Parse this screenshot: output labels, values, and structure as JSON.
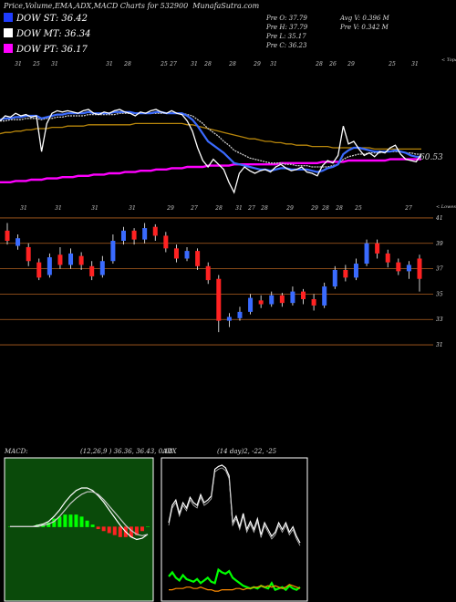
{
  "header": {
    "title": "Price,Volume,EMA,ADX,MACD Charts for 532900",
    "site": "MunafaSutra.com",
    "dow": [
      {
        "label": "DOW ST:",
        "value": "36.42",
        "color": "#1e3cff"
      },
      {
        "label": "DOW MT:",
        "value": "36.34",
        "color": "#ffffff"
      },
      {
        "label": "DOW PT:",
        "value": "36.17",
        "color": "#ff00ff"
      }
    ],
    "prev_left": [
      "Pre  O: 37.79",
      "Pre  H: 37.79",
      "Pre  L: 35.17",
      "Pre  C: 36.23"
    ],
    "prev_right": [
      "Avg V: 0.396  M",
      "Pre  V: 0.342  M"
    ]
  },
  "chart_data": [
    {
      "type": "line",
      "name": "EMA panel",
      "date_labels_top": [
        "31",
        "25",
        "31",
        "31",
        "28",
        "25",
        "27",
        "31",
        "28",
        "28",
        "29",
        "31",
        "28",
        "26",
        "29",
        "25",
        "31"
      ],
      "date_labels_bottom": [
        "31",
        "31",
        "31",
        "31",
        "29",
        "27",
        "28",
        "31",
        "27",
        "28",
        "29",
        "29",
        "28",
        "28",
        "25",
        "27"
      ],
      "tag_right": "< Topa",
      "price_label": "60.53",
      "series": [
        {
          "name": "price",
          "color": "#ffffff",
          "y": [
            0.66,
            0.7,
            0.69,
            0.72,
            0.7,
            0.71,
            0.69,
            0.7,
            0.42,
            0.64,
            0.72,
            0.74,
            0.73,
            0.74,
            0.73,
            0.72,
            0.74,
            0.75,
            0.72,
            0.71,
            0.73,
            0.72,
            0.74,
            0.75,
            0.73,
            0.72,
            0.7,
            0.73,
            0.72,
            0.74,
            0.75,
            0.73,
            0.72,
            0.74,
            0.72,
            0.71,
            0.66,
            0.58,
            0.45,
            0.35,
            0.3,
            0.36,
            0.32,
            0.28,
            0.18,
            0.1,
            0.25,
            0.3,
            0.27,
            0.25,
            0.27,
            0.28,
            0.26,
            0.3,
            0.32,
            0.29,
            0.27,
            0.28,
            0.3,
            0.26,
            0.25,
            0.23,
            0.31,
            0.35,
            0.33,
            0.39,
            0.62,
            0.48,
            0.5,
            0.44,
            0.39,
            0.41,
            0.38,
            0.42,
            0.41,
            0.45,
            0.47,
            0.4,
            0.36,
            0.35,
            0.34,
            0.4
          ]
        },
        {
          "name": "ema-short",
          "color": "#3b6bff",
          "y": [
            0.67,
            0.68,
            0.68,
            0.69,
            0.69,
            0.7,
            0.7,
            0.7,
            0.68,
            0.69,
            0.7,
            0.71,
            0.71,
            0.72,
            0.72,
            0.72,
            0.72,
            0.73,
            0.72,
            0.72,
            0.72,
            0.72,
            0.73,
            0.73,
            0.73,
            0.73,
            0.72,
            0.72,
            0.72,
            0.72,
            0.73,
            0.73,
            0.72,
            0.72,
            0.72,
            0.72,
            0.7,
            0.67,
            0.62,
            0.56,
            0.5,
            0.47,
            0.44,
            0.41,
            0.37,
            0.33,
            0.32,
            0.31,
            0.3,
            0.29,
            0.28,
            0.28,
            0.27,
            0.28,
            0.29,
            0.29,
            0.28,
            0.28,
            0.28,
            0.28,
            0.27,
            0.26,
            0.27,
            0.29,
            0.3,
            0.32,
            0.4,
            0.43,
            0.45,
            0.45,
            0.44,
            0.43,
            0.42,
            0.42,
            0.42,
            0.42,
            0.43,
            0.42,
            0.41,
            0.39,
            0.38,
            0.38
          ]
        },
        {
          "name": "ema-mid",
          "color": "#cccccc",
          "y": [
            0.66,
            0.66,
            0.67,
            0.67,
            0.67,
            0.68,
            0.68,
            0.68,
            0.67,
            0.68,
            0.68,
            0.69,
            0.69,
            0.7,
            0.7,
            0.7,
            0.7,
            0.71,
            0.71,
            0.71,
            0.71,
            0.71,
            0.71,
            0.72,
            0.72,
            0.72,
            0.72,
            0.72,
            0.72,
            0.72,
            0.72,
            0.72,
            0.72,
            0.72,
            0.72,
            0.72,
            0.71,
            0.7,
            0.67,
            0.64,
            0.6,
            0.57,
            0.54,
            0.5,
            0.47,
            0.43,
            0.41,
            0.39,
            0.37,
            0.36,
            0.35,
            0.34,
            0.33,
            0.33,
            0.33,
            0.32,
            0.32,
            0.31,
            0.31,
            0.31,
            0.3,
            0.3,
            0.3,
            0.3,
            0.31,
            0.32,
            0.36,
            0.38,
            0.39,
            0.4,
            0.4,
            0.41,
            0.41,
            0.41,
            0.42,
            0.42,
            0.42,
            0.42,
            0.41,
            0.41,
            0.4,
            0.4
          ]
        },
        {
          "name": "ema-long",
          "color": "#ff00ff",
          "y": [
            0.18,
            0.18,
            0.18,
            0.19,
            0.19,
            0.19,
            0.2,
            0.2,
            0.2,
            0.21,
            0.21,
            0.21,
            0.22,
            0.22,
            0.22,
            0.23,
            0.23,
            0.23,
            0.24,
            0.24,
            0.24,
            0.25,
            0.25,
            0.25,
            0.26,
            0.26,
            0.26,
            0.27,
            0.27,
            0.27,
            0.28,
            0.28,
            0.28,
            0.29,
            0.29,
            0.29,
            0.3,
            0.3,
            0.3,
            0.3,
            0.31,
            0.31,
            0.31,
            0.31,
            0.31,
            0.32,
            0.32,
            0.32,
            0.32,
            0.32,
            0.32,
            0.32,
            0.32,
            0.32,
            0.33,
            0.33,
            0.33,
            0.33,
            0.33,
            0.33,
            0.33,
            0.33,
            0.34,
            0.34,
            0.34,
            0.34,
            0.34,
            0.35,
            0.35,
            0.35,
            0.35,
            0.35,
            0.35,
            0.35,
            0.35,
            0.36,
            0.36,
            0.36,
            0.36,
            0.36,
            0.36,
            0.36
          ]
        },
        {
          "name": "ema-trend",
          "color": "#b8860b",
          "y": [
            0.56,
            0.57,
            0.57,
            0.58,
            0.58,
            0.59,
            0.59,
            0.6,
            0.6,
            0.6,
            0.61,
            0.61,
            0.61,
            0.62,
            0.62,
            0.62,
            0.62,
            0.63,
            0.63,
            0.63,
            0.63,
            0.63,
            0.63,
            0.63,
            0.63,
            0.63,
            0.64,
            0.64,
            0.64,
            0.64,
            0.64,
            0.64,
            0.64,
            0.64,
            0.64,
            0.64,
            0.63,
            0.63,
            0.62,
            0.61,
            0.6,
            0.59,
            0.58,
            0.57,
            0.56,
            0.55,
            0.54,
            0.53,
            0.52,
            0.52,
            0.51,
            0.5,
            0.5,
            0.49,
            0.49,
            0.48,
            0.48,
            0.47,
            0.47,
            0.47,
            0.46,
            0.46,
            0.46,
            0.46,
            0.45,
            0.45,
            0.45,
            0.45,
            0.45,
            0.45,
            0.45,
            0.45,
            0.44,
            0.44,
            0.44,
            0.44,
            0.44,
            0.44,
            0.44,
            0.44,
            0.44,
            0.44
          ]
        }
      ]
    },
    {
      "type": "candlestick",
      "name": "price panel",
      "tag_right": "< Lowes",
      "ytick_labels": [
        "41",
        "39",
        "37",
        "35",
        "33",
        "31"
      ],
      "yticks": [
        41,
        39,
        37,
        35,
        33,
        31
      ],
      "ylim": [
        30.5,
        41.5
      ],
      "candles": [
        {
          "o": 40.0,
          "c": 39.2,
          "h": 40.6,
          "l": 38.9
        },
        {
          "o": 38.8,
          "c": 39.4,
          "h": 39.7,
          "l": 38.5
        },
        {
          "o": 38.7,
          "c": 37.6,
          "h": 39.0,
          "l": 37.2
        },
        {
          "o": 37.5,
          "c": 36.3,
          "h": 37.8,
          "l": 36.1
        },
        {
          "o": 36.5,
          "c": 37.9,
          "h": 38.2,
          "l": 36.3
        },
        {
          "o": 38.1,
          "c": 37.3,
          "h": 38.7,
          "l": 37.0
        },
        {
          "o": 37.3,
          "c": 38.2,
          "h": 38.6,
          "l": 37.0
        },
        {
          "o": 38.0,
          "c": 37.3,
          "h": 38.3,
          "l": 36.9
        },
        {
          "o": 37.2,
          "c": 36.4,
          "h": 37.6,
          "l": 36.1
        },
        {
          "o": 36.5,
          "c": 37.6,
          "h": 38.0,
          "l": 36.3
        },
        {
          "o": 37.6,
          "c": 39.2,
          "h": 39.7,
          "l": 37.4
        },
        {
          "o": 39.2,
          "c": 40.0,
          "h": 40.3,
          "l": 38.9
        },
        {
          "o": 40.0,
          "c": 39.3,
          "h": 40.2,
          "l": 38.9
        },
        {
          "o": 39.3,
          "c": 40.2,
          "h": 40.6,
          "l": 39.0
        },
        {
          "o": 40.3,
          "c": 39.6,
          "h": 40.5,
          "l": 39.2
        },
        {
          "o": 39.6,
          "c": 38.6,
          "h": 39.9,
          "l": 38.3
        },
        {
          "o": 38.6,
          "c": 37.8,
          "h": 38.9,
          "l": 37.5
        },
        {
          "o": 37.8,
          "c": 38.4,
          "h": 38.7,
          "l": 37.6
        },
        {
          "o": 38.4,
          "c": 37.2,
          "h": 38.6,
          "l": 36.9
        },
        {
          "o": 37.2,
          "c": 36.1,
          "h": 37.5,
          "l": 35.8
        },
        {
          "o": 36.2,
          "c": 32.9,
          "h": 36.5,
          "l": 32.0
        },
        {
          "o": 32.9,
          "c": 33.2,
          "h": 33.5,
          "l": 32.4
        },
        {
          "o": 33.1,
          "c": 33.6,
          "h": 34.0,
          "l": 32.9
        },
        {
          "o": 33.6,
          "c": 34.7,
          "h": 35.0,
          "l": 33.4
        },
        {
          "o": 34.5,
          "c": 34.2,
          "h": 34.9,
          "l": 33.9
        },
        {
          "o": 34.2,
          "c": 34.9,
          "h": 35.2,
          "l": 34.0
        },
        {
          "o": 34.9,
          "c": 34.3,
          "h": 35.1,
          "l": 34.0
        },
        {
          "o": 34.3,
          "c": 35.2,
          "h": 35.6,
          "l": 34.1
        },
        {
          "o": 35.2,
          "c": 34.6,
          "h": 35.4,
          "l": 34.2
        },
        {
          "o": 34.6,
          "c": 34.1,
          "h": 35.0,
          "l": 33.7
        },
        {
          "o": 34.1,
          "c": 35.6,
          "h": 35.9,
          "l": 33.9
        },
        {
          "o": 35.6,
          "c": 36.9,
          "h": 37.2,
          "l": 35.4
        },
        {
          "o": 36.9,
          "c": 36.3,
          "h": 37.3,
          "l": 36.0
        },
        {
          "o": 36.3,
          "c": 37.4,
          "h": 37.8,
          "l": 36.1
        },
        {
          "o": 37.4,
          "c": 39.0,
          "h": 39.3,
          "l": 37.2
        },
        {
          "o": 39.0,
          "c": 38.2,
          "h": 39.3,
          "l": 37.8
        },
        {
          "o": 38.2,
          "c": 37.5,
          "h": 38.5,
          "l": 37.1
        },
        {
          "o": 37.5,
          "c": 36.8,
          "h": 37.8,
          "l": 36.5
        },
        {
          "o": 36.8,
          "c": 37.3,
          "h": 37.6,
          "l": 36.2
        },
        {
          "o": 37.8,
          "c": 36.2,
          "h": 38.1,
          "l": 35.2
        }
      ]
    },
    {
      "type": "line",
      "name": "MACD panel",
      "title": "MACD:",
      "params": "(12,26,9 ) 36.36,  36.43,  0.18",
      "series": [
        {
          "name": "macd",
          "color": "#ffffff",
          "y": [
            0.18,
            0.18,
            0.18,
            0.18,
            0.18,
            0.19,
            0.2,
            0.22,
            0.26,
            0.31,
            0.37,
            0.42,
            0.46,
            0.48,
            0.48,
            0.46,
            0.42,
            0.37,
            0.31,
            0.25,
            0.19,
            0.14,
            0.1,
            0.08,
            0.09,
            0.12
          ]
        },
        {
          "name": "signal",
          "color": "#cccccc",
          "y": [
            0.18,
            0.18,
            0.18,
            0.18,
            0.18,
            0.18,
            0.19,
            0.2,
            0.22,
            0.26,
            0.31,
            0.36,
            0.4,
            0.43,
            0.45,
            0.45,
            0.43,
            0.39,
            0.34,
            0.29,
            0.24,
            0.19,
            0.15,
            0.12,
            0.11,
            0.12
          ]
        }
      ],
      "histogram": [
        0,
        0,
        0,
        0,
        0,
        0.01,
        0.01,
        0.02,
        0.04,
        0.05,
        0.06,
        0.06,
        0.06,
        0.05,
        0.03,
        0.01,
        -0.01,
        -0.02,
        -0.03,
        -0.04,
        -0.05,
        -0.05,
        -0.05,
        -0.04,
        -0.02,
        0
      ]
    },
    {
      "type": "line",
      "name": "ADX panel",
      "title": "ADX",
      "params": "(14 day)2, -22, -25",
      "series": [
        {
          "name": "adx",
          "color": "#ffffff",
          "y": [
            0.55,
            0.68,
            0.72,
            0.62,
            0.7,
            0.66,
            0.74,
            0.7,
            0.68,
            0.76,
            0.7,
            0.72,
            0.75,
            0.95,
            0.97,
            0.98,
            0.96,
            0.9,
            0.55,
            0.6,
            0.52,
            0.62,
            0.5,
            0.56,
            0.5,
            0.58,
            0.46,
            0.55,
            0.5,
            0.45,
            0.48,
            0.55,
            0.5,
            0.55,
            0.48,
            0.52,
            0.45,
            0.4
          ]
        },
        {
          "name": "plus-di",
          "color": "#00ff00",
          "y": [
            0.15,
            0.18,
            0.14,
            0.12,
            0.16,
            0.13,
            0.12,
            0.11,
            0.13,
            0.1,
            0.12,
            0.14,
            0.11,
            0.1,
            0.2,
            0.18,
            0.17,
            0.19,
            0.14,
            0.12,
            0.1,
            0.08,
            0.07,
            0.06,
            0.07,
            0.06,
            0.08,
            0.07,
            0.06,
            0.1,
            0.05,
            0.06,
            0.07,
            0.05,
            0.08,
            0.06,
            0.05,
            0.07
          ]
        },
        {
          "name": "minus-di",
          "color": "#ff8c00",
          "y": [
            0.05,
            0.05,
            0.06,
            0.06,
            0.06,
            0.07,
            0.07,
            0.06,
            0.06,
            0.07,
            0.06,
            0.05,
            0.05,
            0.04,
            0.04,
            0.05,
            0.05,
            0.05,
            0.05,
            0.06,
            0.06,
            0.05,
            0.06,
            0.06,
            0.07,
            0.07,
            0.08,
            0.07,
            0.08,
            0.07,
            0.08,
            0.07,
            0.06,
            0.07,
            0.09,
            0.08,
            0.07,
            0.06
          ]
        }
      ]
    }
  ]
}
